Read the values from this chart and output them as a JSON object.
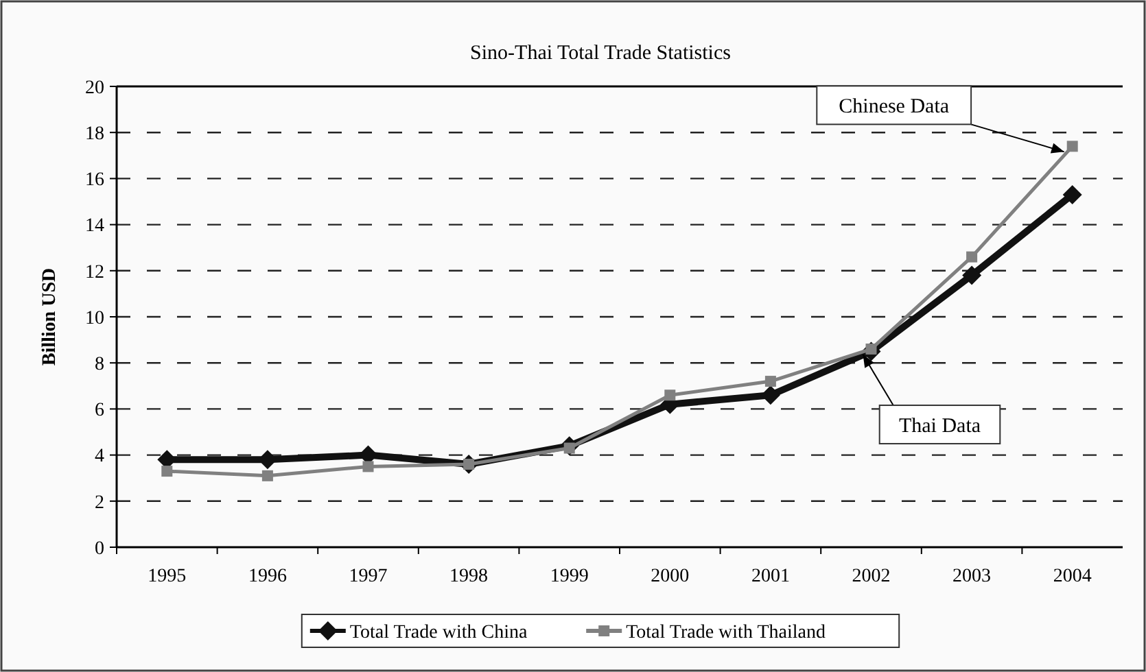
{
  "chart_data": {
    "type": "line",
    "title": "Sino-Thai Total Trade Statistics",
    "ylabel": "Billion USD",
    "categories": [
      "1995",
      "1996",
      "1997",
      "1998",
      "1999",
      "2000",
      "2001",
      "2002",
      "2003",
      "2004"
    ],
    "series": [
      {
        "name": "Total Trade with China",
        "color": "#111111",
        "marker": "diamond",
        "values": [
          3.8,
          3.8,
          4.0,
          3.6,
          4.4,
          6.2,
          6.6,
          8.5,
          11.8,
          15.3
        ]
      },
      {
        "name": "Total Trade with Thailand",
        "color": "#808080",
        "marker": "square",
        "values": [
          3.3,
          3.1,
          3.5,
          3.6,
          4.3,
          6.6,
          7.2,
          8.6,
          12.6,
          17.4
        ]
      }
    ],
    "ylim": [
      0,
      20
    ],
    "yticks": [
      0,
      2,
      4,
      6,
      8,
      10,
      12,
      14,
      16,
      18,
      20
    ],
    "grid": "y",
    "legend": "bottom",
    "line_style": "solid",
    "annotations": [
      {
        "text": "Chinese Data",
        "x": "2004",
        "y": 17.4
      },
      {
        "text": "Thai Data",
        "x": "2002",
        "y": 8.6
      }
    ]
  }
}
